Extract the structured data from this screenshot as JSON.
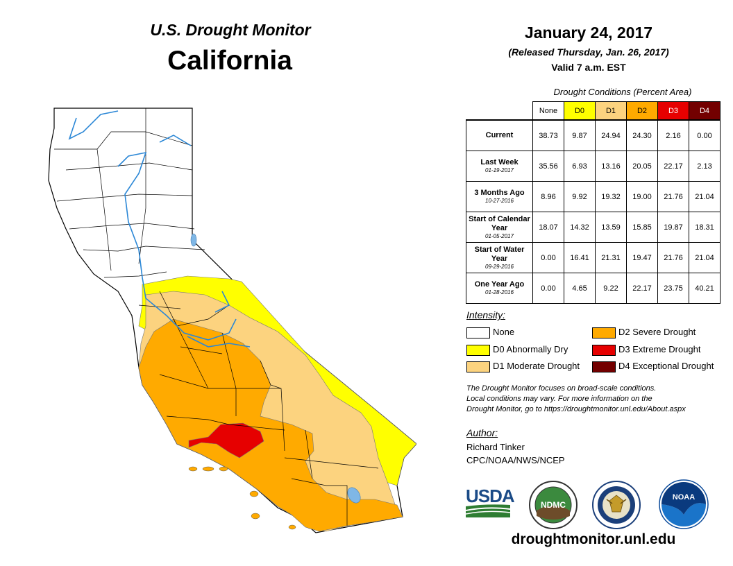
{
  "header": {
    "subtitle": "U.S. Drought Monitor",
    "title": "California",
    "date": "January 24, 2017",
    "released": "(Released Thursday, Jan. 26, 2017)",
    "valid": "Valid 7 a.m. EST"
  },
  "table": {
    "caption": "Drought Conditions (Percent Area)",
    "columns": [
      "None",
      "D0",
      "D1",
      "D2",
      "D3",
      "D4"
    ],
    "column_colors": [
      "#ffffff",
      "#ffff00",
      "#fcd37f",
      "#ffaa00",
      "#e60000",
      "#730000"
    ],
    "rows": [
      {
        "label": "Current",
        "date": "",
        "values": [
          "38.73",
          "9.87",
          "24.94",
          "24.30",
          "2.16",
          "0.00"
        ]
      },
      {
        "label": "Last Week",
        "date": "01-19-2017",
        "values": [
          "35.56",
          "6.93",
          "13.16",
          "20.05",
          "22.17",
          "2.13"
        ]
      },
      {
        "label": "3 Months Ago",
        "date": "10-27-2016",
        "values": [
          "8.96",
          "9.92",
          "19.32",
          "19.00",
          "21.76",
          "21.04"
        ]
      },
      {
        "label": "Start of Calendar Year",
        "date": "01-05-2017",
        "values": [
          "18.07",
          "14.32",
          "13.59",
          "15.85",
          "19.87",
          "18.31"
        ]
      },
      {
        "label": "Start of Water Year",
        "date": "09-29-2016",
        "values": [
          "0.00",
          "16.41",
          "21.31",
          "19.47",
          "21.76",
          "21.04"
        ]
      },
      {
        "label": "One Year Ago",
        "date": "01-28-2016",
        "values": [
          "0.00",
          "4.65",
          "9.22",
          "22.17",
          "23.75",
          "40.21"
        ]
      }
    ]
  },
  "legend": {
    "title": "Intensity:",
    "items": [
      {
        "label": "None",
        "color": "#ffffff"
      },
      {
        "label": "D0 Abnormally Dry",
        "color": "#ffff00"
      },
      {
        "label": "D1 Moderate Drought",
        "color": "#fcd37f"
      },
      {
        "label": "D2 Severe Drought",
        "color": "#ffaa00"
      },
      {
        "label": "D3 Extreme Drought",
        "color": "#e60000"
      },
      {
        "label": "D4 Exceptional Drought",
        "color": "#730000"
      }
    ]
  },
  "note": {
    "line1": "The Drought Monitor focuses on broad-scale conditions.",
    "line2": "Local conditions may vary. For more information on the",
    "line3": "Drought Monitor, go to https://droughtmonitor.unl.edu/About.aspx"
  },
  "author": {
    "heading": "Author:",
    "name": "Richard Tinker",
    "org": "CPC/NOAA/NWS/NCEP"
  },
  "logos": {
    "usda": "USDA",
    "ndmc": "NDMC",
    "noaa": "NOAA"
  },
  "url": "droughtmonitor.unl.edu"
}
